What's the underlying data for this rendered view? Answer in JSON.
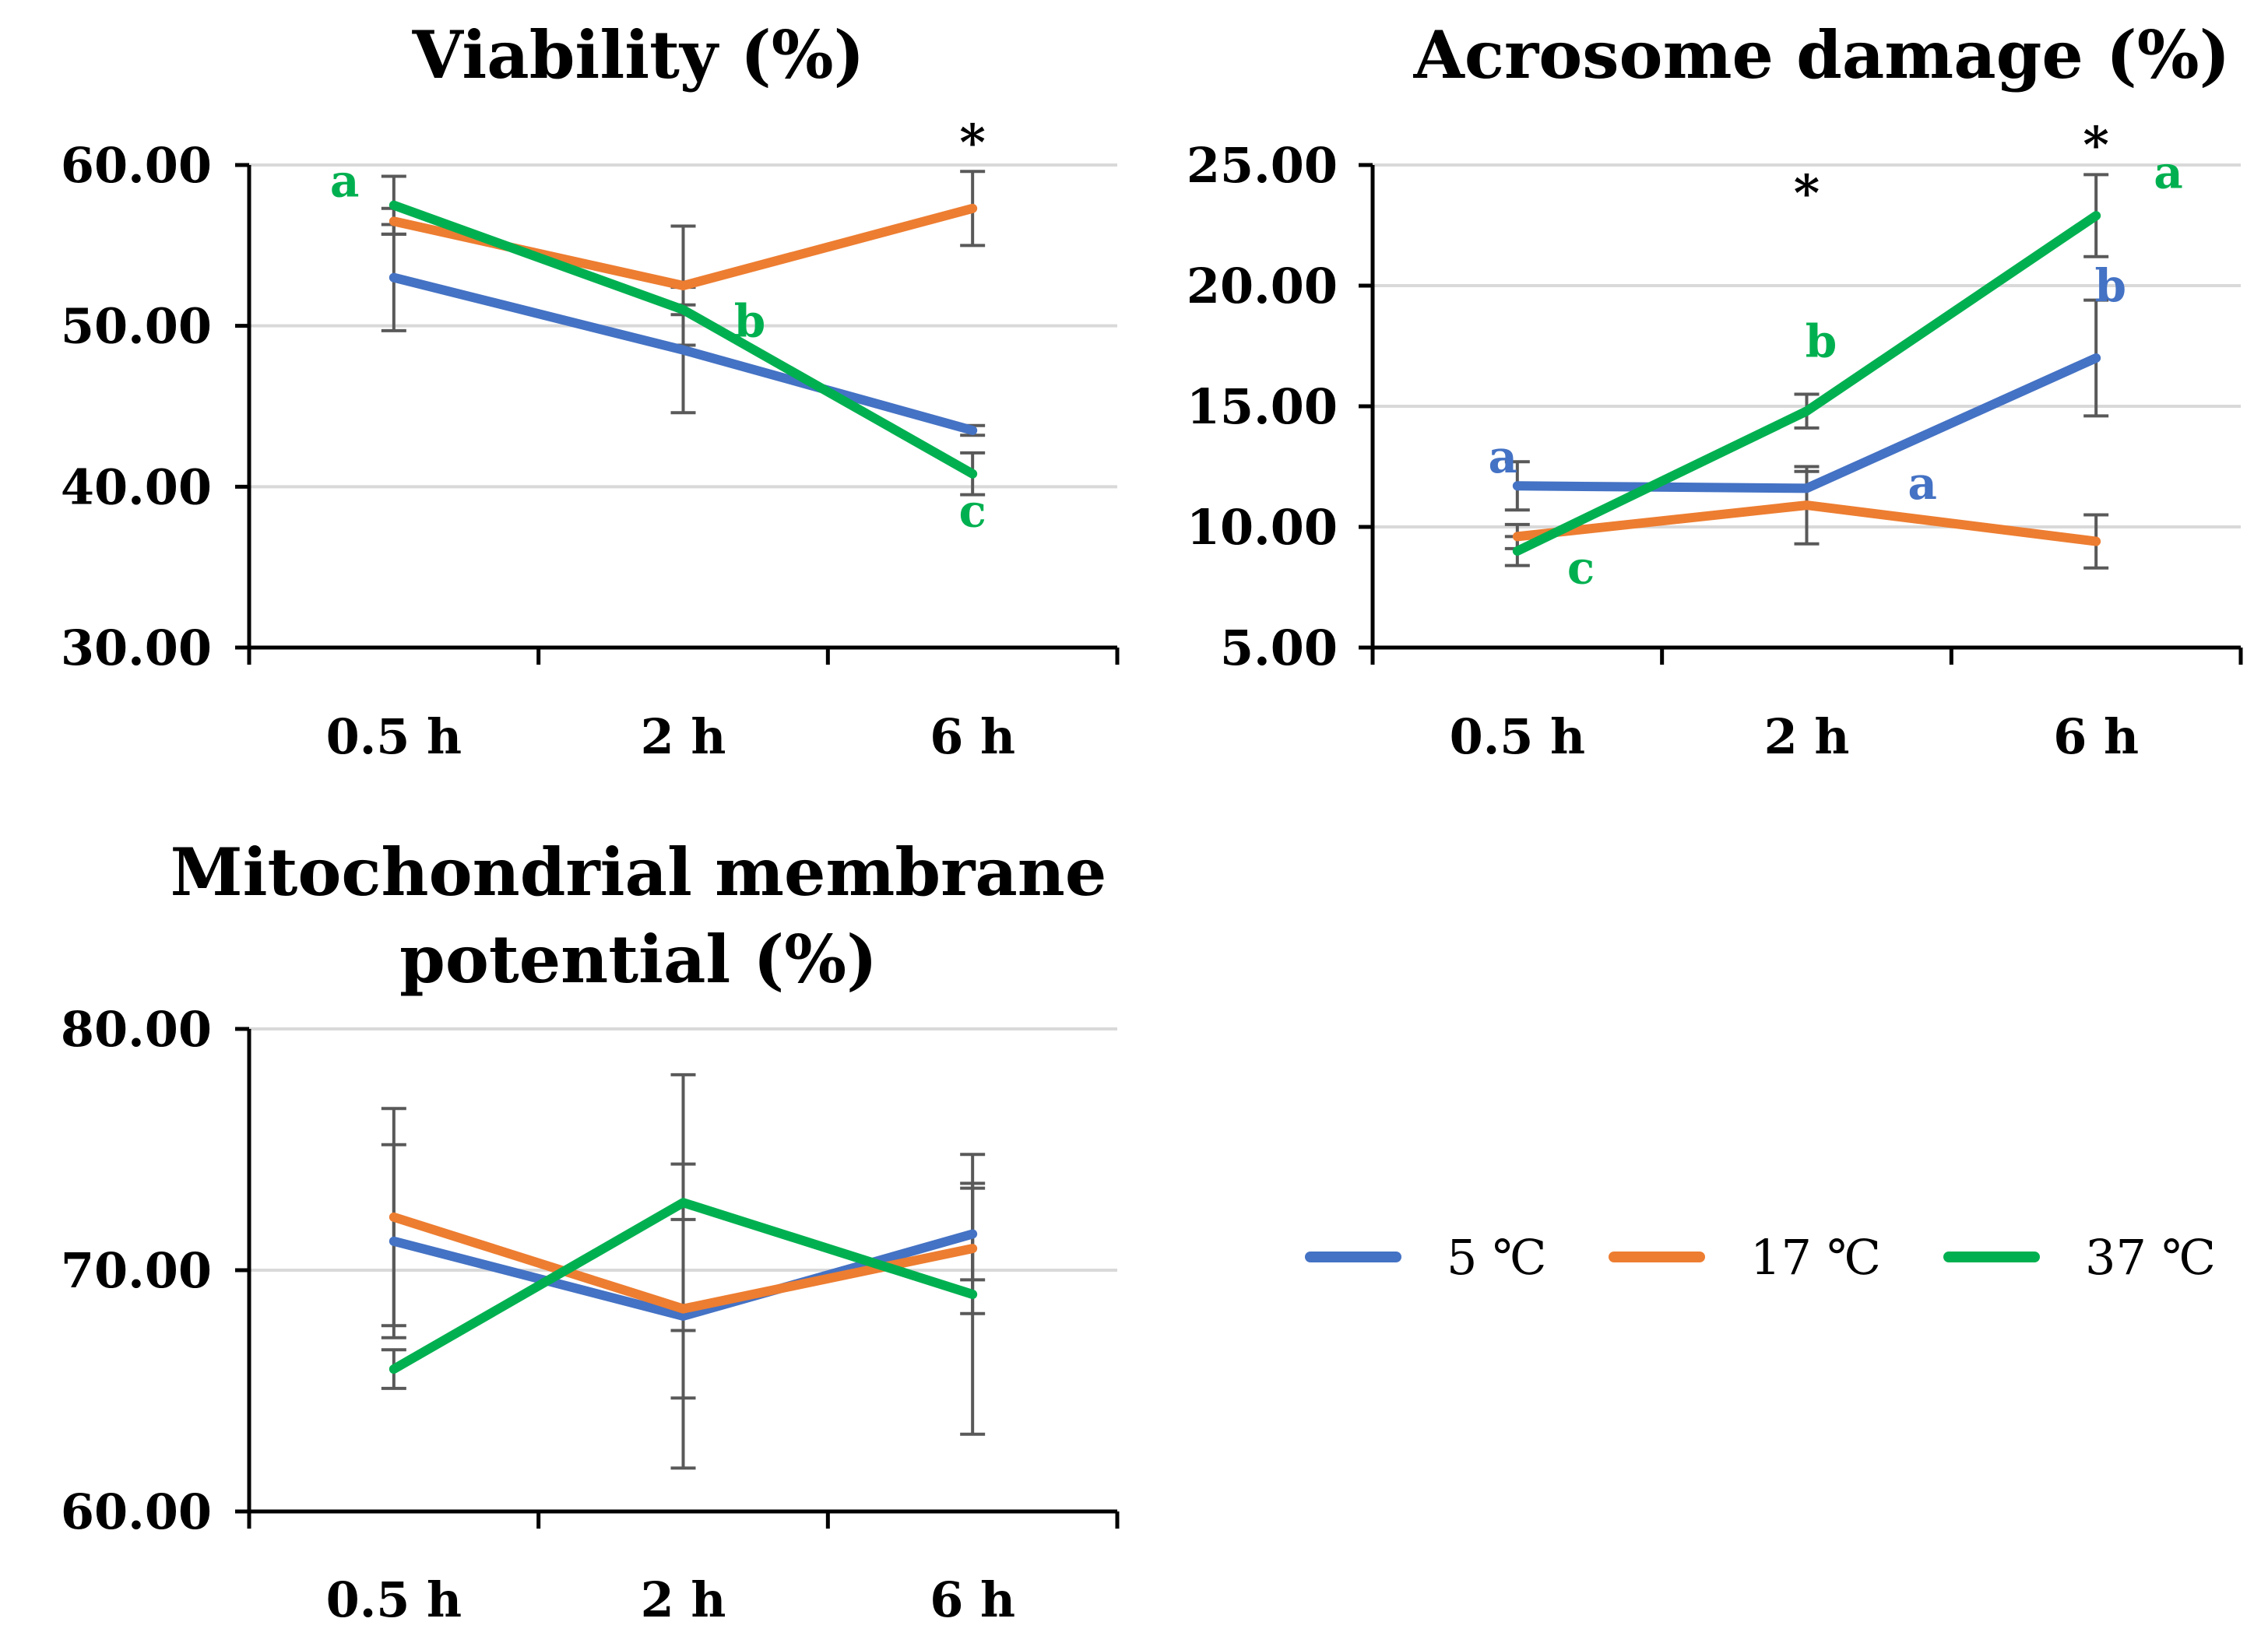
{
  "colors": {
    "s5": "#4472C4",
    "s17": "#ED7D31",
    "s37": "#00B050"
  },
  "legend": [
    {
      "label": "5 ℃",
      "color": "#4472C4"
    },
    {
      "label": "17 ℃",
      "color": "#ED7D31"
    },
    {
      "label": "37 ℃",
      "color": "#00B050"
    }
  ],
  "chart_data": [
    {
      "type": "line",
      "title": "Viability (%)",
      "categories": [
        "0.5 h",
        "2 h",
        "6 h"
      ],
      "ylim": [
        30,
        60
      ],
      "yticks": [
        "30.00",
        "40.00",
        "50.00",
        "60.00"
      ],
      "yticks_values": [
        30,
        40,
        50,
        60
      ],
      "series": [
        {
          "name": "5 ℃",
          "values": [
            53.0,
            48.5,
            43.5
          ],
          "errors": [
            3.3,
            3.9,
            0.3
          ]
        },
        {
          "name": "17 ℃",
          "values": [
            56.5,
            52.5,
            57.3
          ],
          "errors": [
            0.8,
            3.7,
            2.3
          ]
        },
        {
          "name": "37 ℃",
          "values": [
            57.5,
            51.0,
            40.8
          ],
          "errors": [
            1.8,
            0.3,
            1.3
          ]
        }
      ],
      "annotations": [
        {
          "text": "a",
          "series": 2,
          "cat": 0,
          "y": 59.0,
          "dx": -0.17
        },
        {
          "text": "b",
          "series": 2,
          "cat": 1,
          "y": 50.3,
          "dx": 0.23
        },
        {
          "text": "c",
          "series": 2,
          "cat": 2,
          "y": 38.5,
          "dx": 0.0
        }
      ],
      "stars": [
        {
          "text": "*",
          "cat": 2,
          "y": 61.8
        }
      ]
    },
    {
      "type": "line",
      "title": "Acrosome damage (%)",
      "categories": [
        "0.5 h",
        "2 h",
        "6 h"
      ],
      "ylim": [
        5,
        25
      ],
      "yticks": [
        "5.00",
        "10.00",
        "15.00",
        "20.00",
        "25.00"
      ],
      "yticks_values": [
        5,
        10,
        15,
        20,
        25
      ],
      "series": [
        {
          "name": "5 ℃",
          "values": [
            11.7,
            11.6,
            17.0
          ],
          "errors": [
            1.0,
            0.7,
            2.4
          ]
        },
        {
          "name": "17 ℃",
          "values": [
            9.6,
            10.9,
            9.4
          ],
          "errors": [
            0.5,
            1.6,
            1.1
          ]
        },
        {
          "name": "37 ℃",
          "values": [
            9.0,
            14.8,
            22.9
          ],
          "errors": [
            0.6,
            0.7,
            1.7
          ]
        }
      ],
      "annotations": [
        {
          "text": "a",
          "series": 0,
          "cat": 0,
          "y": 12.9,
          "dx": -0.05
        },
        {
          "text": "a",
          "series": 0,
          "cat": 1,
          "y": 11.8,
          "dx": 0.4
        },
        {
          "text": "b",
          "series": 0,
          "cat": 2,
          "y": 20.0,
          "dx": 0.05
        },
        {
          "text": "c",
          "series": 2,
          "cat": 0,
          "y": 8.3,
          "dx": 0.22
        },
        {
          "text": "b",
          "series": 2,
          "cat": 1,
          "y": 17.7,
          "dx": 0.05
        },
        {
          "text": "a",
          "series": 2,
          "cat": 2,
          "y": 24.7,
          "dx": 0.25
        }
      ],
      "stars": [
        {
          "text": "*",
          "cat": 1,
          "y": 24.1
        },
        {
          "text": "*",
          "cat": 2,
          "y": 26.1
        }
      ]
    },
    {
      "type": "line",
      "title": [
        "Mitochondrial membrane",
        "potential (%)"
      ],
      "categories": [
        "0.5 h",
        "2 h",
        "6 h"
      ],
      "ylim": [
        60,
        80
      ],
      "yticks": [
        "60.00",
        "70.00",
        "80.00"
      ],
      "yticks_values": [
        60,
        70,
        80
      ],
      "series": [
        {
          "name": "5 ℃",
          "values": [
            71.2,
            68.1,
            71.5
          ],
          "errors": [
            4.0,
            6.3,
            1.9
          ]
        },
        {
          "name": "17 ℃",
          "values": [
            72.2,
            68.4,
            70.9
          ],
          "errors": [
            4.5,
            3.7,
            2.7
          ]
        },
        {
          "name": "37 ℃",
          "values": [
            65.9,
            72.8,
            69.0
          ],
          "errors": [
            0.8,
            5.3,
            5.8
          ]
        }
      ],
      "annotations": [],
      "stars": []
    }
  ]
}
